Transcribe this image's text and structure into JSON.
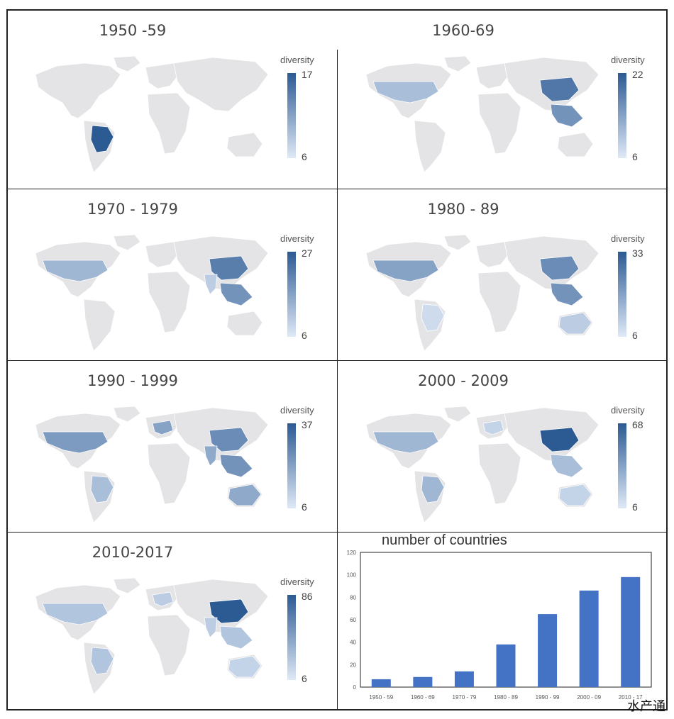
{
  "panels": [
    {
      "title": "1950 -59",
      "legend_title": "diversity",
      "max": "17",
      "min": "6",
      "highlights": [
        {
          "region": "brazil",
          "level": 1.0
        },
        {
          "region": "usa",
          "level": 0.0
        },
        {
          "region": "china",
          "level": 0.0
        },
        {
          "region": "australia",
          "level": 0.0
        },
        {
          "region": "europe",
          "level": 0.0
        }
      ]
    },
    {
      "title": "1960-69",
      "legend_title": "diversity",
      "max": "22",
      "min": "6",
      "highlights": [
        {
          "region": "usa",
          "level": 0.3
        },
        {
          "region": "china",
          "level": 0.8
        },
        {
          "region": "seasia",
          "level": 0.6
        },
        {
          "region": "brazil",
          "level": 0.0
        },
        {
          "region": "australia",
          "level": 0.0
        }
      ]
    },
    {
      "title": "1970 - 1979",
      "legend_title": "diversity",
      "max": "27",
      "min": "6",
      "highlights": [
        {
          "region": "usa",
          "level": 0.35
        },
        {
          "region": "china",
          "level": 0.75
        },
        {
          "region": "seasia",
          "level": 0.6
        },
        {
          "region": "india",
          "level": 0.2
        },
        {
          "region": "australia",
          "level": 0.0
        }
      ]
    },
    {
      "title": "1980 - 89",
      "legend_title": "diversity",
      "max": "33",
      "min": "6",
      "highlights": [
        {
          "region": "usa",
          "level": 0.5
        },
        {
          "region": "china",
          "level": 0.65
        },
        {
          "region": "seasia",
          "level": 0.6
        },
        {
          "region": "australia",
          "level": 0.2
        },
        {
          "region": "brazil",
          "level": 0.1
        }
      ]
    },
    {
      "title": "1990 - 1999",
      "legend_title": "diversity",
      "max": "37",
      "min": "6",
      "highlights": [
        {
          "region": "usa",
          "level": 0.55
        },
        {
          "region": "china",
          "level": 0.65
        },
        {
          "region": "seasia",
          "level": 0.6
        },
        {
          "region": "australia",
          "level": 0.45
        },
        {
          "region": "brazil",
          "level": 0.3
        },
        {
          "region": "europe",
          "level": 0.5
        },
        {
          "region": "india",
          "level": 0.45
        }
      ]
    },
    {
      "title": "2000 - 2009",
      "legend_title": "diversity",
      "max": "68",
      "min": "6",
      "highlights": [
        {
          "region": "usa",
          "level": 0.35
        },
        {
          "region": "china",
          "level": 1.0
        },
        {
          "region": "seasia",
          "level": 0.3
        },
        {
          "region": "australia",
          "level": 0.15
        },
        {
          "region": "brazil",
          "level": 0.35
        },
        {
          "region": "europe",
          "level": 0.15
        }
      ]
    },
    {
      "title": "2010-2017",
      "legend_title": "diversity",
      "max": "86",
      "min": "6",
      "highlights": [
        {
          "region": "usa",
          "level": 0.25
        },
        {
          "region": "china",
          "level": 1.0
        },
        {
          "region": "seasia",
          "level": 0.25
        },
        {
          "region": "australia",
          "level": 0.15
        },
        {
          "region": "brazil",
          "level": 0.25
        },
        {
          "region": "europe",
          "level": 0.2
        },
        {
          "region": "india",
          "level": 0.2
        }
      ]
    }
  ],
  "colors": {
    "land": "#e4e4e6",
    "low": "#dfe9f7",
    "high": "#2c5a93",
    "bar": "#4472c4"
  },
  "chart_data": {
    "type": "bar",
    "title": "number of countries",
    "categories": [
      "1950 - 59",
      "1960 - 69",
      "1970 - 79",
      "1980 - 89",
      "1990 - 99",
      "2000 - 09",
      "2010 - 17"
    ],
    "values": [
      7,
      9,
      14,
      38,
      65,
      86,
      98
    ],
    "ylim": [
      0,
      120
    ],
    "yticks": [
      0,
      20,
      40,
      60,
      80,
      100,
      120
    ],
    "xlabel": "",
    "ylabel": "",
    "grid": false
  },
  "watermark": "水产通"
}
